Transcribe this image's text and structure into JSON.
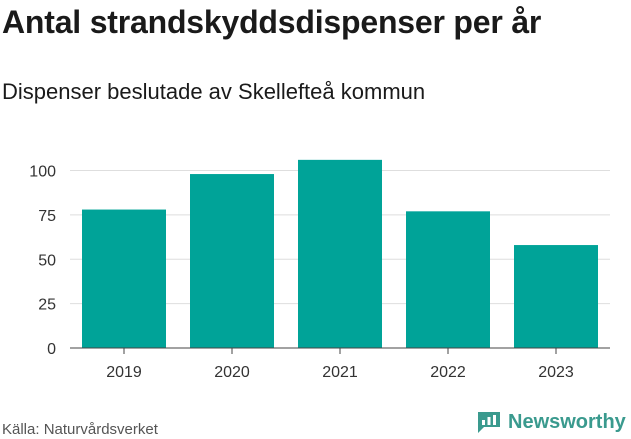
{
  "header": {
    "title": "Antal strandskyddsdispenser per år",
    "subtitle": "Dispenser beslutade av Skellefteå kommun"
  },
  "footer": {
    "source": "Källa: Naturvårdsverket",
    "brand": "Newsworthy"
  },
  "colors": {
    "bar": "#00a398",
    "grid": "#dedede",
    "brand": "#3a9a8e"
  },
  "chart_data": {
    "type": "bar",
    "title": "Antal strandskyddsdispenser per år",
    "subtitle": "Dispenser beslutade av Skellefteå kommun",
    "categories": [
      "2019",
      "2020",
      "2021",
      "2022",
      "2023"
    ],
    "values": [
      78,
      98,
      106,
      77,
      58
    ],
    "yticks": [
      0,
      25,
      50,
      75,
      100
    ],
    "ylim": [
      0,
      110
    ],
    "xlabel": "",
    "ylabel": "",
    "grid": true,
    "legend": "none"
  }
}
